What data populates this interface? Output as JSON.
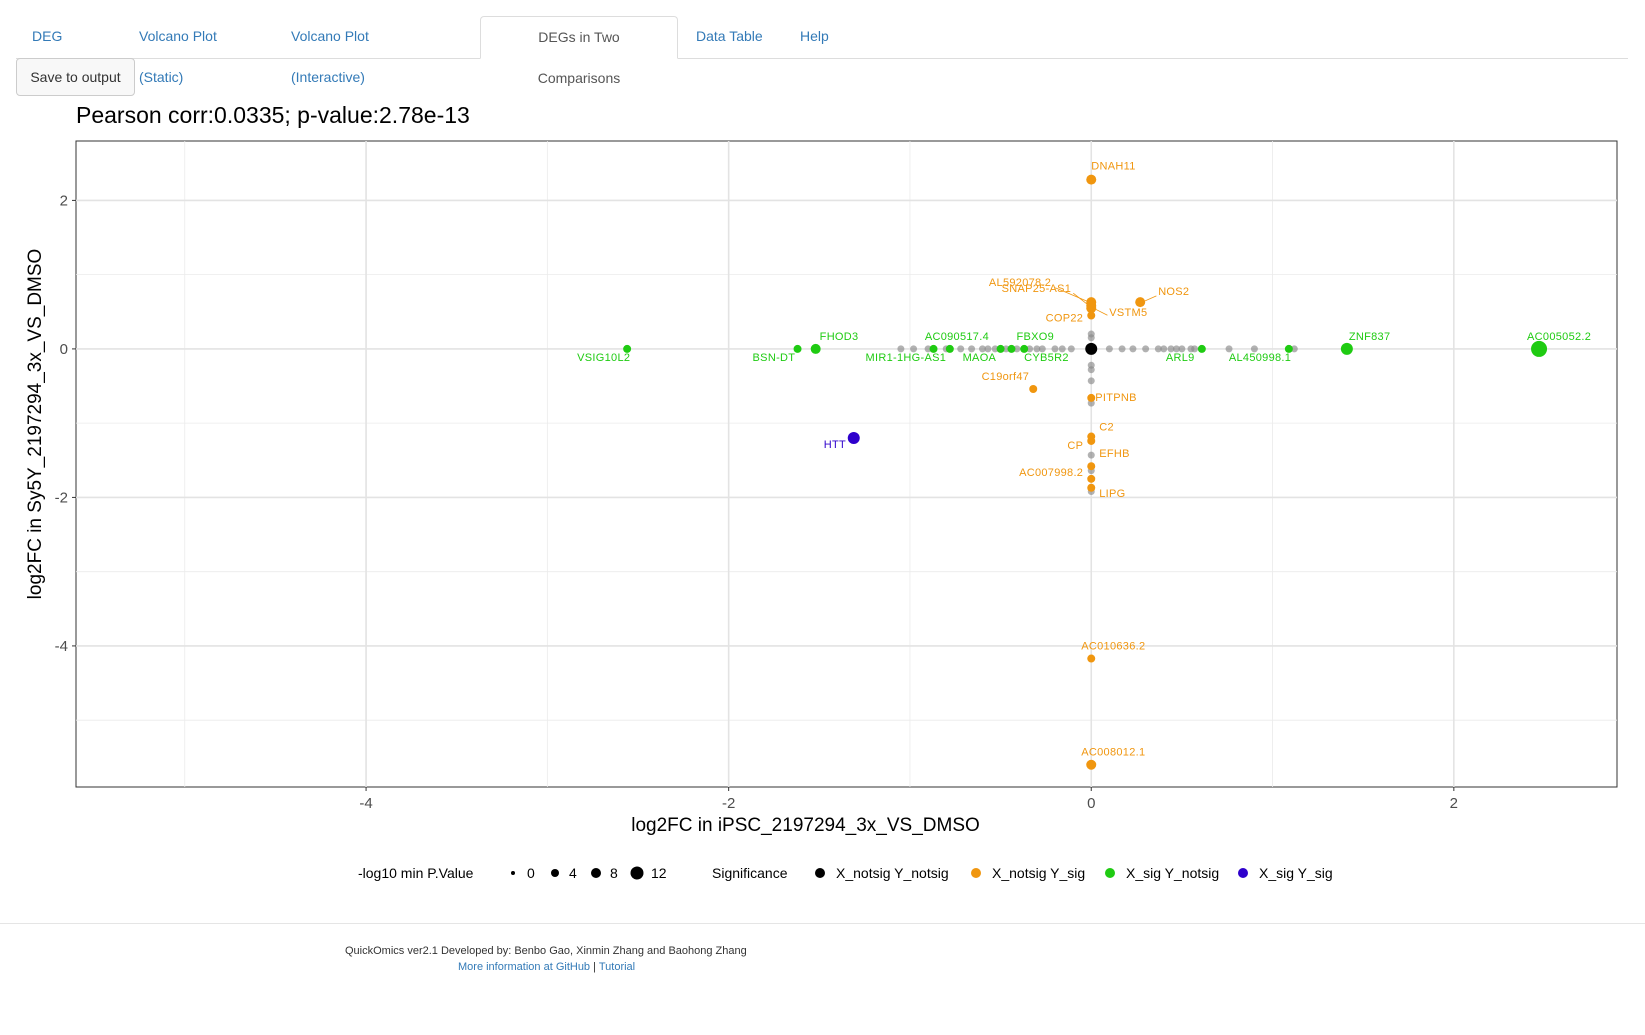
{
  "tabs": [
    {
      "label": "DEG Counts"
    },
    {
      "label": "Volcano Plot (Static)"
    },
    {
      "label": "Volcano Plot (Interactive)"
    },
    {
      "label": "DEGs in Two Comparisons"
    },
    {
      "label": "Data Table"
    },
    {
      "label": "Help"
    }
  ],
  "active_tab": "DEGs in Two Comparisons",
  "save_button": "Save to output",
  "footer": {
    "credits": "QuickOmics ver2.1 Developed by: Benbo Gao, Xinmin Zhang and Baohong Zhang",
    "more_info": "More information at GitHub",
    "separator": "|",
    "tutorial": "Tutorial"
  },
  "colors": {
    "X_notsig Y_notsig": "#000000",
    "X_notsig Y_sig": "#F0960F",
    "X_sig Y_notsig": "#1FCB12",
    "X_sig Y_sig": "#2E00CC",
    "grid": "#EBEBEB",
    "link": "#337ab7"
  },
  "chart_data": {
    "type": "scatter",
    "title": "Pearson corr:0.0335; p-value:2.78e-13",
    "xlabel": "log2FC in iPSC_2197294_3x_VS_DMSO",
    "ylabel": "log2FC in Sy5Y_2197294_3x_VS_DMSO",
    "xlim": [
      -5.6,
      2.9
    ],
    "ylim": [
      -5.9,
      2.8
    ],
    "xticks": [
      -4,
      -2,
      0,
      2
    ],
    "yticks": [
      2,
      0,
      -2,
      -4
    ],
    "grid": true,
    "legend_position": "bottom",
    "size_legend": {
      "title": "-log10 min P.Value",
      "values": [
        0,
        4,
        8,
        12
      ]
    },
    "color_legend": {
      "title": "Significance",
      "entries": [
        "X_notsig Y_notsig",
        "X_notsig Y_sig",
        "X_sig Y_notsig",
        "X_sig Y_sig"
      ]
    },
    "points": [
      {
        "x": 0,
        "y": 2.28,
        "group": "X_notsig Y_sig",
        "size": 5,
        "label": "DNAH11"
      },
      {
        "x": 0,
        "y": 0.63,
        "group": "X_notsig Y_sig",
        "size": 5,
        "label": "AL592078.2"
      },
      {
        "x": 0.27,
        "y": 0.63,
        "group": "X_notsig Y_sig",
        "size": 5,
        "label": "NOS2"
      },
      {
        "x": 0,
        "y": 0.58,
        "group": "X_notsig Y_sig",
        "size": 5,
        "label": "SNAP25-AS1"
      },
      {
        "x": 0,
        "y": 0.55,
        "group": "X_notsig Y_sig",
        "size": 5,
        "label": "VSTM5"
      },
      {
        "x": 0,
        "y": 0.45,
        "group": "X_notsig Y_sig",
        "size": 4,
        "label": "COP22"
      },
      {
        "x": -0.32,
        "y": -0.54,
        "group": "X_notsig Y_sig",
        "size": 4,
        "label": "C19orf47"
      },
      {
        "x": 0,
        "y": -0.66,
        "group": "X_notsig Y_sig",
        "size": 4,
        "label": "PITPNB"
      },
      {
        "x": 0,
        "y": -1.18,
        "group": "X_notsig Y_sig",
        "size": 4,
        "label": "C2"
      },
      {
        "x": 0,
        "y": -1.24,
        "group": "X_notsig Y_sig",
        "size": 4,
        "label": "CP"
      },
      {
        "x": 0,
        "y": -1.58,
        "group": "X_notsig Y_sig",
        "size": 4,
        "label": "EFHB"
      },
      {
        "x": 0,
        "y": -1.75,
        "group": "X_notsig Y_sig",
        "size": 4,
        "label": "AC007998.2"
      },
      {
        "x": 0,
        "y": -1.87,
        "group": "X_notsig Y_sig",
        "size": 4,
        "label": "LIPG"
      },
      {
        "x": 0,
        "y": -4.17,
        "group": "X_notsig Y_sig",
        "size": 4,
        "label": "AC010636.2"
      },
      {
        "x": 0,
        "y": -5.6,
        "group": "X_notsig Y_sig",
        "size": 5,
        "label": "AC008012.1"
      },
      {
        "x": -2.56,
        "y": 0,
        "group": "X_sig Y_notsig",
        "size": 4,
        "label": "VSIG10L2"
      },
      {
        "x": -1.62,
        "y": 0,
        "group": "X_sig Y_notsig",
        "size": 4,
        "label": "BSN-DT"
      },
      {
        "x": -1.52,
        "y": 0,
        "group": "X_sig Y_notsig",
        "size": 5,
        "label": "FHOD3"
      },
      {
        "x": -0.87,
        "y": 0,
        "group": "X_sig Y_notsig",
        "size": 4,
        "label": "MIR1-1HG-AS1"
      },
      {
        "x": -0.78,
        "y": 0,
        "group": "X_sig Y_notsig",
        "size": 4,
        "label": "AC090517.4"
      },
      {
        "x": -0.5,
        "y": 0,
        "group": "X_sig Y_notsig",
        "size": 4,
        "label": "MAOA"
      },
      {
        "x": -0.44,
        "y": 0,
        "group": "X_sig Y_notsig",
        "size": 4,
        "label": "FBXO9"
      },
      {
        "x": -0.37,
        "y": 0,
        "group": "X_sig Y_notsig",
        "size": 4,
        "label": "CYB5R2"
      },
      {
        "x": 0.61,
        "y": 0,
        "group": "X_sig Y_notsig",
        "size": 4,
        "label": "ARL9"
      },
      {
        "x": 1.09,
        "y": 0,
        "group": "X_sig Y_notsig",
        "size": 4,
        "label": "AL450998.1"
      },
      {
        "x": 1.41,
        "y": 0,
        "group": "X_sig Y_notsig",
        "size": 6,
        "label": "ZNF837"
      },
      {
        "x": 2.47,
        "y": 0,
        "group": "X_sig Y_notsig",
        "size": 8,
        "label": "AC005052.2"
      },
      {
        "x": -1.31,
        "y": -1.2,
        "group": "X_sig Y_sig",
        "size": 6,
        "label": "HTT"
      },
      {
        "x": 0,
        "y": 0,
        "group": "X_notsig Y_notsig",
        "size": 6,
        "label": ""
      }
    ]
  }
}
